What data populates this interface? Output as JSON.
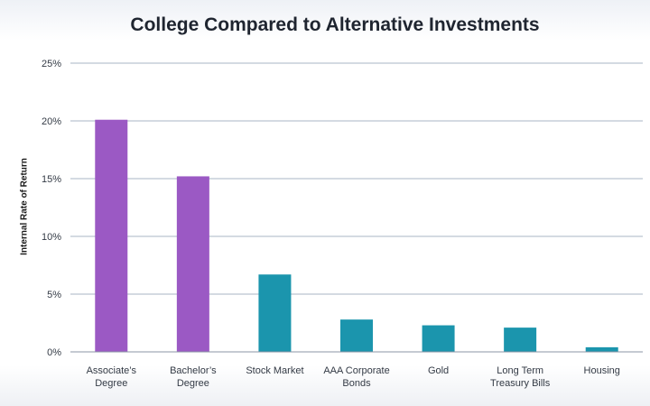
{
  "chart_data": {
    "type": "bar",
    "title": "College Compared to Alternative Investments",
    "ylabel": "Internal Rate of Return",
    "xlabel": "",
    "ylim": [
      0,
      25
    ],
    "yticks": [
      0,
      5,
      10,
      15,
      20,
      25
    ],
    "ytick_labels": [
      "0%",
      "5%",
      "10%",
      "15%",
      "20%",
      "25%"
    ],
    "grid": true,
    "legend": "none",
    "categories": [
      [
        "Associate’s",
        "Degree"
      ],
      [
        "Bachelor’s",
        "Degree"
      ],
      [
        "Stock Market"
      ],
      [
        "AAA Corporate",
        "Bonds"
      ],
      [
        "Gold"
      ],
      [
        "Long Term",
        "Treasury Bills"
      ],
      [
        "Housing"
      ]
    ],
    "values": [
      20.1,
      15.2,
      6.7,
      2.8,
      2.3,
      2.1,
      0.4
    ],
    "colors": [
      "#9b59c4",
      "#9b59c4",
      "#1b95ad",
      "#1b95ad",
      "#1b95ad",
      "#1b95ad",
      "#1b95ad"
    ]
  }
}
